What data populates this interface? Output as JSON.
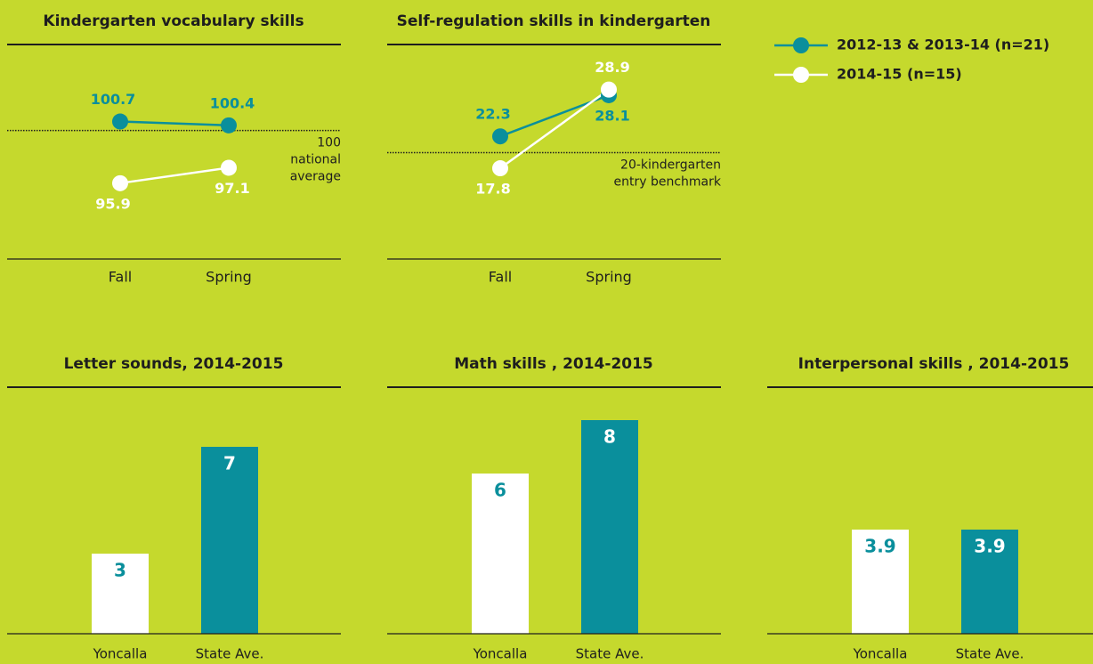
{
  "legend": [
    {
      "name": "2012-13 & 2013-14 (n=21)",
      "color": "#0a8f9c"
    },
    {
      "name": "2014-15 (n=15)",
      "color": "#ffffff"
    }
  ],
  "chart_data": [
    {
      "type": "line",
      "title": "Kindergarten vocabulary skills",
      "categories": [
        "Fall",
        "Spring"
      ],
      "series": [
        {
          "color": "#0a8f9c",
          "values": [
            100.7,
            100.4
          ]
        },
        {
          "color": "#ffffff",
          "values": [
            95.9,
            97.1
          ]
        }
      ],
      "ylim": [
        90,
        106
      ],
      "reference": {
        "value": 100,
        "label": [
          "100",
          "national",
          "average"
        ]
      }
    },
    {
      "type": "line",
      "title": "Self-regulation skills in kindergarten",
      "categories": [
        "Fall",
        "Spring"
      ],
      "series": [
        {
          "color": "#0a8f9c",
          "values": [
            22.3,
            28.1
          ]
        },
        {
          "color": "#ffffff",
          "values": [
            17.8,
            28.9
          ]
        }
      ],
      "ylim": [
        5,
        34
      ],
      "reference": {
        "value": 20,
        "label": [
          "20-kindergarten",
          "entry benchmark"
        ]
      }
    },
    {
      "type": "bar",
      "title": "Letter sounds, 2014-2015",
      "categories": [
        "Yoncalla",
        "State Ave."
      ],
      "values": [
        3,
        7
      ],
      "colors": [
        "#ffffff",
        "#0a8f9c"
      ],
      "ylim": [
        0,
        9
      ]
    },
    {
      "type": "bar",
      "title": "Math skills , 2014-2015",
      "categories": [
        "Yoncalla",
        "State Ave."
      ],
      "values": [
        6,
        8
      ],
      "colors": [
        "#ffffff",
        "#0a8f9c"
      ],
      "ylim": [
        0,
        9
      ]
    },
    {
      "type": "bar",
      "title": "Interpersonal skills , 2014-2015",
      "categories": [
        "Yoncalla",
        "State Ave."
      ],
      "values": [
        3.9,
        3.9
      ],
      "colors": [
        "#ffffff",
        "#0a8f9c"
      ],
      "ylim": [
        0,
        9
      ]
    }
  ]
}
